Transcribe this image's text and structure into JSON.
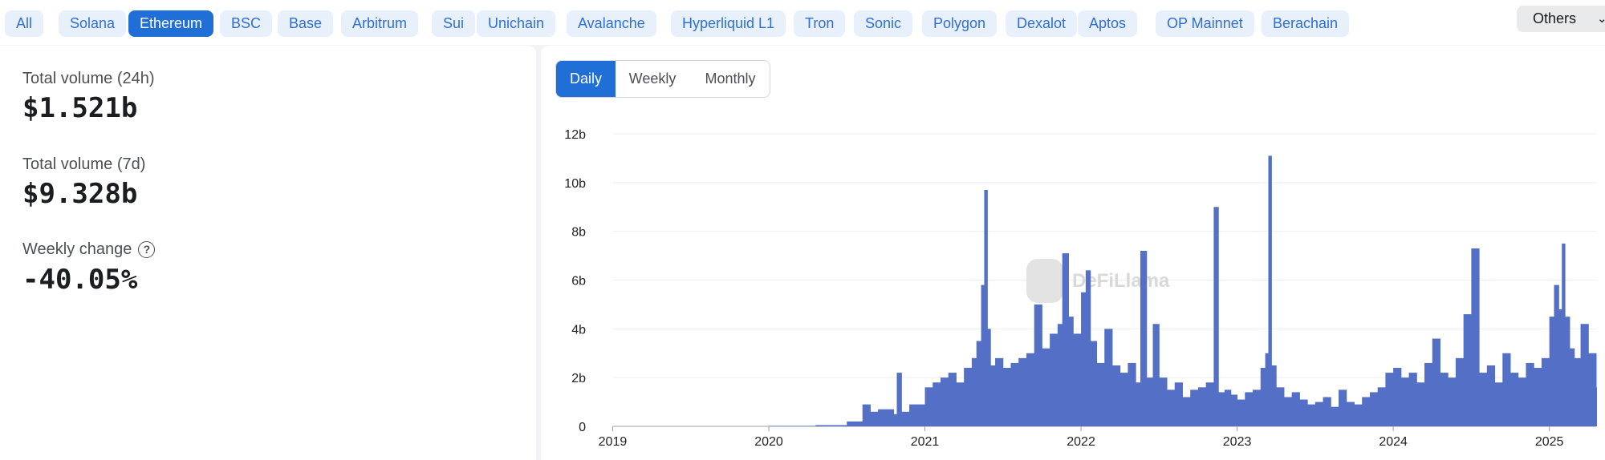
{
  "chains": [
    {
      "label": "All",
      "active": false
    },
    {
      "label": "Solana",
      "active": false
    },
    {
      "label": "Ethereum",
      "active": true
    },
    {
      "label": "BSC",
      "active": false
    },
    {
      "label": "Base",
      "active": false
    },
    {
      "label": "Arbitrum",
      "active": false
    },
    {
      "label": "Sui",
      "active": false
    },
    {
      "label": "Unichain",
      "active": false
    },
    {
      "label": "Avalanche",
      "active": false
    },
    {
      "label": "Hyperliquid L1",
      "active": false
    },
    {
      "label": "Tron",
      "active": false
    },
    {
      "label": "Sonic",
      "active": false
    },
    {
      "label": "Polygon",
      "active": false
    },
    {
      "label": "Dexalot",
      "active": false
    },
    {
      "label": "Aptos",
      "active": false
    },
    {
      "label": "OP Mainnet",
      "active": false
    },
    {
      "label": "Berachain",
      "active": false
    }
  ],
  "others_label": "Others",
  "others_icon": "chevron-down-icon",
  "stats": {
    "vol24h_label": "Total volume (24h)",
    "vol24h_value": "$1.521b",
    "vol7d_label": "Total volume (7d)",
    "vol7d_value": "$9.328b",
    "weekly_change_label": "Weekly change",
    "weekly_change_value": "-40.05%",
    "help_icon": "question-circle-icon"
  },
  "tabs": [
    {
      "label": "Daily",
      "active": true
    },
    {
      "label": "Weekly",
      "active": false
    },
    {
      "label": "Monthly",
      "active": false
    }
  ],
  "watermark": "DeFiLlama",
  "colors": {
    "accent": "#1f6fd6",
    "chip_bg": "#e8f0fc",
    "chip_text": "#2f6fd6",
    "series": "#5470c6"
  },
  "chart_data": {
    "type": "bar",
    "title": "",
    "xlabel": "",
    "ylabel": "",
    "y_tick_labels": [
      "0",
      "2b",
      "4b",
      "6b",
      "8b",
      "10b",
      "12b"
    ],
    "x_tick_labels": [
      "2019",
      "2020",
      "2021",
      "2022",
      "2023",
      "2024",
      "2025"
    ],
    "ylim": [
      0,
      12
    ],
    "xlim": [
      2018.9,
      2025.3
    ],
    "grid": true,
    "legend": "none",
    "unit": "billion USD (daily volume)",
    "series": [
      {
        "values_note": "",
        "x": [
          2018.9,
          2019.5,
          2020.0,
          2020.3,
          2020.5,
          2020.6,
          2020.65,
          2020.7,
          2020.8,
          2020.82,
          2020.85,
          2020.9,
          2021.0,
          2021.05,
          2021.1,
          2021.15,
          2021.2,
          2021.25,
          2021.3,
          2021.33,
          2021.36,
          2021.38,
          2021.4,
          2021.42,
          2021.45,
          2021.5,
          2021.55,
          2021.6,
          2021.65,
          2021.7,
          2021.75,
          2021.8,
          2021.85,
          2021.88,
          2021.92,
          2021.95,
          2022.0,
          2022.03,
          2022.06,
          2022.1,
          2022.15,
          2022.2,
          2022.25,
          2022.3,
          2022.35,
          2022.38,
          2022.42,
          2022.46,
          2022.5,
          2022.55,
          2022.6,
          2022.65,
          2022.7,
          2022.75,
          2022.8,
          2022.85,
          2022.88,
          2022.92,
          2022.96,
          2023.0,
          2023.05,
          2023.1,
          2023.15,
          2023.18,
          2023.2,
          2023.22,
          2023.25,
          2023.3,
          2023.35,
          2023.4,
          2023.45,
          2023.5,
          2023.55,
          2023.6,
          2023.65,
          2023.7,
          2023.75,
          2023.8,
          2023.85,
          2023.9,
          2023.95,
          2024.0,
          2024.05,
          2024.1,
          2024.15,
          2024.2,
          2024.25,
          2024.3,
          2024.35,
          2024.4,
          2024.45,
          2024.5,
          2024.55,
          2024.6,
          2024.65,
          2024.7,
          2024.75,
          2024.8,
          2024.85,
          2024.9,
          2024.95,
          2025.0,
          2025.03,
          2025.06,
          2025.08,
          2025.1,
          2025.13,
          2025.16,
          2025.2,
          2025.25,
          2025.3
        ],
        "values": [
          0.0,
          0.0,
          0.02,
          0.05,
          0.2,
          0.9,
          0.6,
          0.7,
          0.5,
          2.2,
          0.6,
          0.9,
          1.6,
          1.8,
          2.0,
          2.2,
          1.8,
          2.4,
          2.8,
          3.5,
          5.8,
          9.7,
          4.0,
          2.5,
          2.8,
          2.4,
          2.6,
          2.8,
          3.0,
          5.0,
          3.2,
          3.8,
          4.2,
          7.1,
          4.5,
          3.8,
          5.5,
          6.4,
          3.5,
          2.6,
          4.0,
          2.5,
          2.2,
          2.6,
          1.8,
          7.2,
          2.0,
          4.2,
          2.0,
          1.5,
          1.8,
          1.2,
          1.5,
          1.6,
          1.8,
          9.0,
          1.4,
          1.5,
          1.3,
          1.1,
          1.4,
          1.5,
          2.4,
          3.0,
          11.1,
          2.5,
          1.6,
          1.2,
          1.4,
          1.1,
          0.9,
          1.0,
          1.2,
          0.8,
          1.5,
          1.0,
          0.9,
          1.2,
          1.4,
          1.6,
          2.2,
          2.4,
          2.0,
          2.2,
          1.8,
          2.6,
          3.6,
          2.2,
          2.0,
          2.8,
          4.6,
          7.3,
          2.2,
          2.5,
          1.8,
          3.0,
          2.2,
          2.0,
          2.6,
          2.4,
          2.8,
          4.5,
          5.8,
          4.8,
          7.5,
          4.5,
          3.2,
          2.8,
          4.2,
          3.0,
          1.6
        ]
      }
    ]
  }
}
